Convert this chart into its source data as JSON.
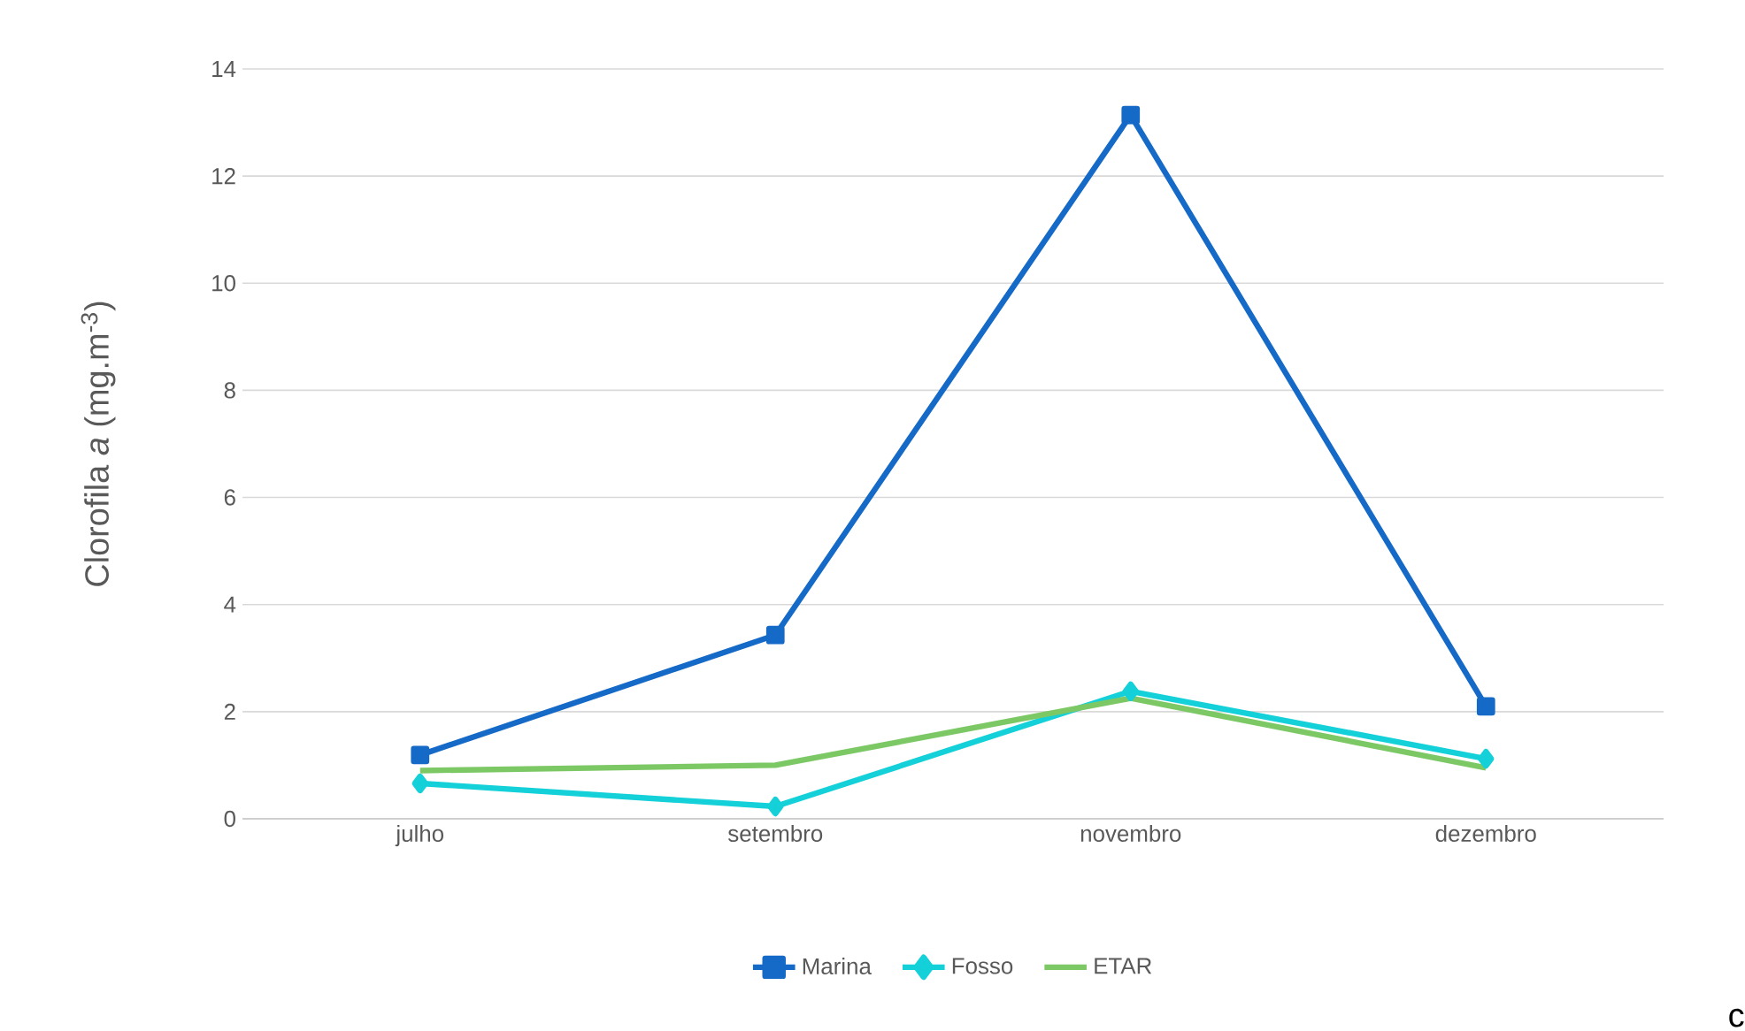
{
  "chart_data": {
    "type": "line",
    "ylabel": "Clorofila *a* (mg.m$^{-3}$)",
    "categories": [
      "julho",
      "setembro",
      "novembro",
      "dezembro"
    ],
    "series": [
      {
        "name": "Marina",
        "color": "#1569c7",
        "marker": "square",
        "values": [
          1.19,
          3.43,
          13.14,
          2.1
        ]
      },
      {
        "name": "Fosso",
        "color": "#14d0d8",
        "marker": "diamond",
        "values": [
          0.66,
          0.23,
          2.38,
          1.12
        ]
      },
      {
        "name": "ETAR",
        "color": "#7cc865",
        "marker": "none",
        "values": [
          0.9,
          1.0,
          2.25,
          0.95
        ]
      }
    ],
    "ylim": [
      0,
      14
    ],
    "yticks": [
      0,
      2,
      4,
      6,
      8,
      10,
      12,
      14
    ],
    "grid": "y",
    "legend": "bottom",
    "line_style": "solid",
    "annotations": [
      "c"
    ]
  }
}
